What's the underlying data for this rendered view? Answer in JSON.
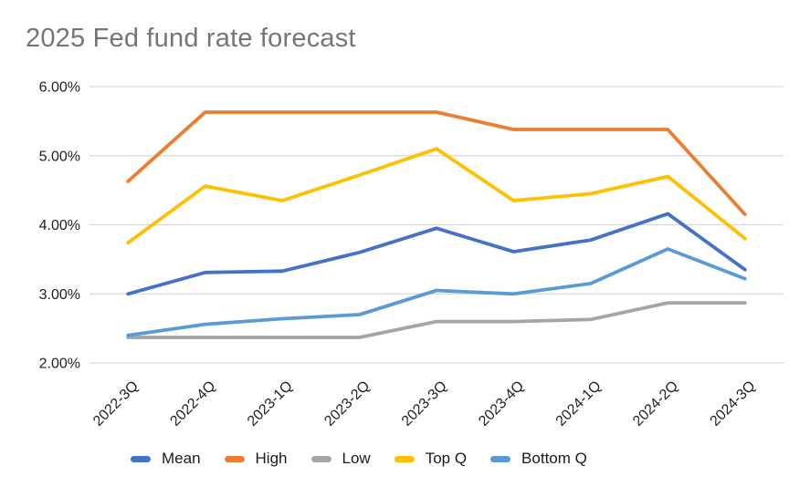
{
  "chart_data": {
    "type": "line",
    "title": "2025 Fed fund rate forecast",
    "categories": [
      "2022-3Q",
      "2022-4Q",
      "2023-1Q",
      "2023-2Q",
      "2023-3Q",
      "2023-4Q",
      "2024-1Q",
      "2024-2Q",
      "2024-3Q"
    ],
    "series": [
      {
        "name": "Mean",
        "color": "#4472C4",
        "values": [
          3.0,
          3.31,
          3.33,
          3.6,
          3.95,
          3.61,
          3.78,
          4.16,
          3.35
        ]
      },
      {
        "name": "High",
        "color": "#ED7D31",
        "values": [
          4.63,
          5.63,
          5.63,
          5.63,
          5.63,
          5.38,
          5.38,
          5.38,
          4.15
        ]
      },
      {
        "name": "Low",
        "color": "#A5A5A5",
        "values": [
          2.37,
          2.37,
          2.37,
          2.37,
          2.6,
          2.6,
          2.63,
          2.87,
          2.87
        ]
      },
      {
        "name": "Top Q",
        "color": "#FFC000",
        "values": [
          3.74,
          4.56,
          4.35,
          4.72,
          5.1,
          4.35,
          4.45,
          4.7,
          3.8
        ]
      },
      {
        "name": "Bottom Q",
        "color": "#5B9BD5",
        "values": [
          2.4,
          2.56,
          2.64,
          2.7,
          3.05,
          3.0,
          3.15,
          3.65,
          3.22
        ]
      }
    ],
    "ylim": [
      2.0,
      6.0
    ],
    "y_ticks": [
      "6.00%",
      "5.00%",
      "4.00%",
      "3.00%",
      "2.00%"
    ],
    "xlabel": "",
    "ylabel": "",
    "grid": true,
    "legend_position": "bottom",
    "colors": {
      "gridline": "#D9D9D9",
      "axis_text": "#1f1f1f",
      "title_text": "#767676",
      "background": "#ffffff"
    }
  }
}
